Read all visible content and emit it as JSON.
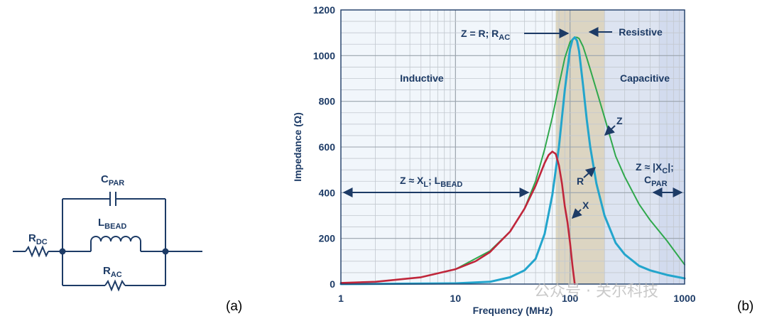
{
  "circuit": {
    "labels": {
      "rdc": "R",
      "rdc_sub": "DC",
      "cpar": "C",
      "cpar_sub": "PAR",
      "lbead": "L",
      "lbead_sub": "BEAD",
      "rac": "R",
      "rac_sub": "AC"
    },
    "panel_tag": "(a)"
  },
  "chart_panel_tag": "(b)",
  "watermark": "公众号 · 关尔科技",
  "colors": {
    "navy": "#1d3b66",
    "red": "#c0263b",
    "blue": "#23a5cc",
    "green": "#2fa84c",
    "plot_bg": "#f4f7fb",
    "inductive_bg": "#f1f6fb",
    "resistive_band": "#dcd5c2",
    "capacitive_bg": "#dde4f1"
  },
  "chart_data": {
    "type": "line",
    "xscale": "log",
    "xlim": [
      1,
      1000
    ],
    "ylim": [
      0,
      1200
    ],
    "xlabel": "Frequency (MHz)",
    "ylabel": "Impedance (Ω)",
    "xticks": [
      "1",
      "10",
      "100",
      "1000"
    ],
    "yticks": [
      "0",
      "200",
      "400",
      "600",
      "800",
      "1000",
      "1200"
    ],
    "grid": true,
    "series": [
      {
        "name": "Z",
        "color": "#2fa84c",
        "x": [
          1,
          2,
          5,
          10,
          20,
          30,
          40,
          50,
          60,
          70,
          80,
          90,
          100,
          110,
          115,
          120,
          130,
          140,
          150,
          170,
          200,
          250,
          300,
          400,
          500,
          700,
          1000
        ],
        "y": [
          5,
          10,
          30,
          65,
          145,
          230,
          330,
          450,
          590,
          730,
          870,
          990,
          1060,
          1080,
          1080,
          1075,
          1040,
          990,
          940,
          850,
          730,
          560,
          470,
          350,
          280,
          190,
          85
        ]
      },
      {
        "name": "R",
        "color": "#23a5cc",
        "x": [
          1,
          10,
          20,
          30,
          40,
          50,
          60,
          70,
          80,
          90,
          100,
          105,
          110,
          115,
          120,
          130,
          140,
          150,
          170,
          200,
          250,
          300,
          400,
          500,
          700,
          1000
        ],
        "y": [
          0,
          3,
          10,
          30,
          60,
          110,
          220,
          390,
          600,
          850,
          1030,
          1070,
          1080,
          1065,
          1020,
          870,
          720,
          600,
          440,
          300,
          180,
          130,
          80,
          60,
          40,
          25
        ]
      },
      {
        "name": "X",
        "color": "#c0263b",
        "x": [
          1,
          2,
          5,
          10,
          15,
          20,
          30,
          40,
          50,
          60,
          65,
          70,
          75,
          80,
          85,
          90,
          95,
          100,
          105,
          110
        ],
        "y": [
          5,
          10,
          30,
          65,
          100,
          140,
          230,
          330,
          430,
          530,
          565,
          580,
          570,
          520,
          440,
          340,
          270,
          180,
          80,
          0
        ]
      }
    ],
    "regions": [
      {
        "label": "Inductive",
        "x": [
          1,
          75
        ]
      },
      {
        "label": "Resistive",
        "x": [
          75,
          200
        ]
      },
      {
        "label": "Capacitive",
        "x": [
          200,
          1000
        ]
      }
    ],
    "annotations": [
      {
        "text": "Z = R; R",
        "sub": "AC"
      },
      {
        "text": "Z ≈ X",
        "sub": "L",
        "tail": "; L",
        "tail_sub": "BEAD"
      },
      {
        "text": "Z ≈ |X",
        "sub": "C",
        "tail": "|;"
      },
      {
        "text": "C",
        "sub": "PAR"
      },
      {
        "text": "Resistive"
      },
      {
        "text": "Inductive"
      },
      {
        "text": "Capacitive"
      }
    ],
    "curve_labels": [
      "Z",
      "R",
      "X"
    ]
  }
}
